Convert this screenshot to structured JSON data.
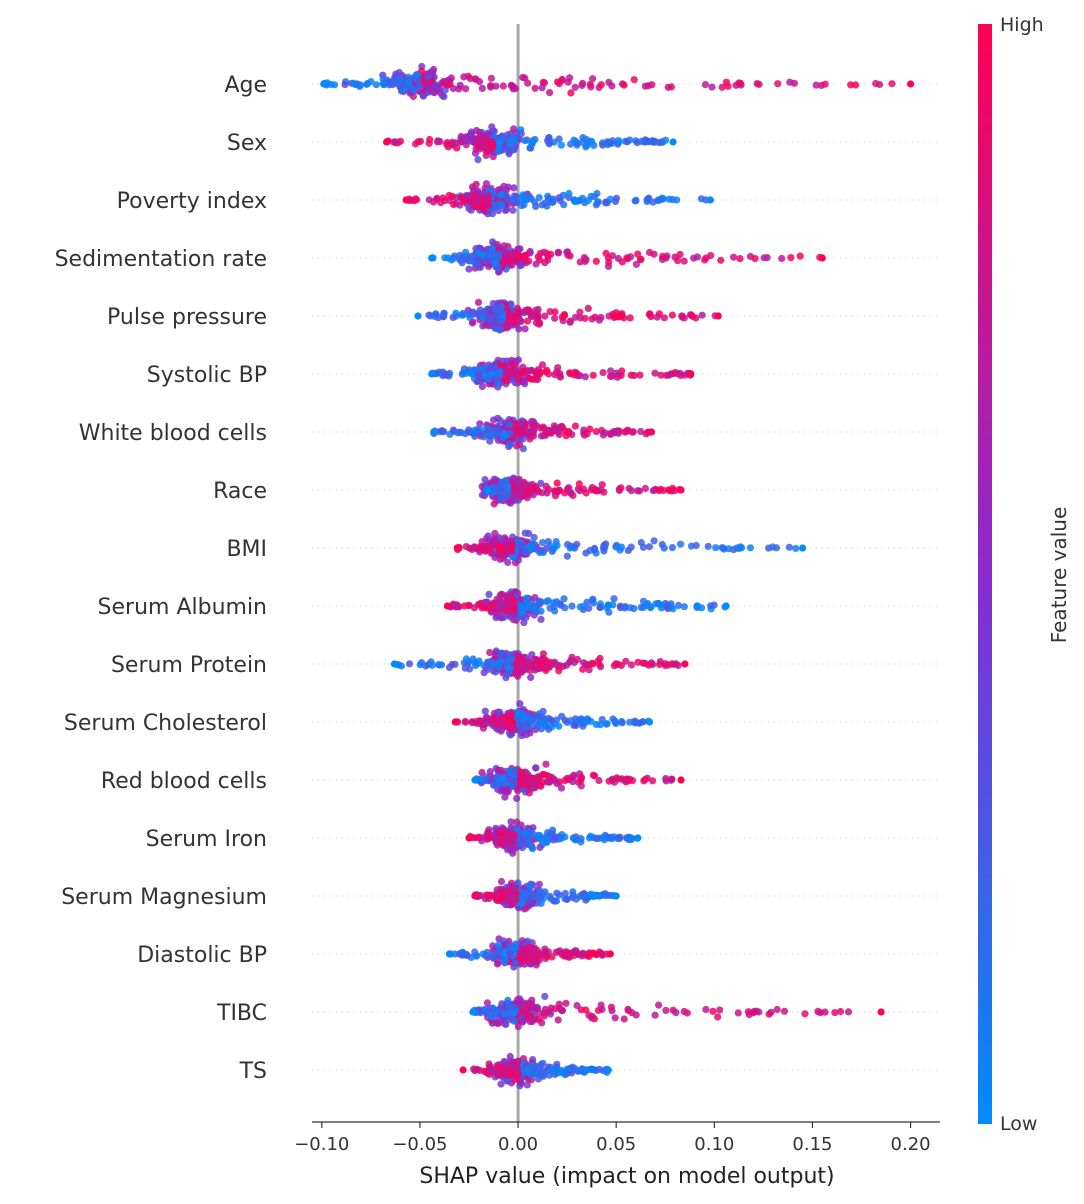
{
  "chart_data": {
    "type": "scatter",
    "subtype": "shap-beeswarm",
    "xlabel": "SHAP value (impact on model output)",
    "xlim": [
      -0.105,
      0.215
    ],
    "xticks": [
      -0.1,
      -0.05,
      0.0,
      0.05,
      0.1,
      0.15,
      0.2
    ],
    "xtick_labels": [
      "−0.10",
      "−0.05",
      "0.00",
      "0.05",
      "0.10",
      "0.15",
      "0.20"
    ],
    "colorbar": {
      "label": "Feature value",
      "high_label": "High",
      "low_label": "Low",
      "high_color": "#ff0052",
      "low_color": "#008bfb"
    },
    "features": [
      {
        "name": "Age",
        "min": -0.099,
        "max": 0.2,
        "center": -0.05,
        "hi_side": "right"
      },
      {
        "name": "Sex",
        "min": -0.067,
        "max": 0.079,
        "center": -0.013,
        "hi_side": "left"
      },
      {
        "name": "Poverty index",
        "min": -0.057,
        "max": 0.098,
        "center": -0.015,
        "hi_side": "left"
      },
      {
        "name": "Sedimentation rate",
        "min": -0.044,
        "max": 0.155,
        "center": -0.01,
        "hi_side": "right"
      },
      {
        "name": "Pulse pressure",
        "min": -0.051,
        "max": 0.102,
        "center": -0.008,
        "hi_side": "right"
      },
      {
        "name": "Systolic BP",
        "min": -0.044,
        "max": 0.088,
        "center": -0.009,
        "hi_side": "right"
      },
      {
        "name": "White blood cells",
        "min": -0.043,
        "max": 0.068,
        "center": -0.004,
        "hi_side": "right"
      },
      {
        "name": "Race",
        "min": -0.016,
        "max": 0.083,
        "center": -0.005,
        "hi_side": "right"
      },
      {
        "name": "BMI",
        "min": -0.031,
        "max": 0.145,
        "center": -0.003,
        "hi_side": "left"
      },
      {
        "name": "Serum Albumin",
        "min": -0.036,
        "max": 0.106,
        "center": -0.002,
        "hi_side": "left"
      },
      {
        "name": "Serum Protein",
        "min": -0.063,
        "max": 0.085,
        "center": -0.003,
        "hi_side": "right"
      },
      {
        "name": "Serum Cholesterol",
        "min": -0.032,
        "max": 0.067,
        "center": -0.002,
        "hi_side": "left"
      },
      {
        "name": "Red blood cells",
        "min": -0.022,
        "max": 0.083,
        "center": -0.002,
        "hi_side": "right"
      },
      {
        "name": "Serum Iron",
        "min": -0.025,
        "max": 0.061,
        "center": -0.002,
        "hi_side": "left"
      },
      {
        "name": "Serum Magnesium",
        "min": -0.022,
        "max": 0.05,
        "center": -0.001,
        "hi_side": "left"
      },
      {
        "name": "Diastolic BP",
        "min": -0.035,
        "max": 0.047,
        "center": -0.001,
        "hi_side": "right"
      },
      {
        "name": "TIBC",
        "min": -0.023,
        "max": 0.185,
        "center": -0.001,
        "hi_side": "right"
      },
      {
        "name": "TS",
        "min": -0.028,
        "max": 0.046,
        "center": 0.0,
        "hi_side": "left"
      }
    ]
  }
}
